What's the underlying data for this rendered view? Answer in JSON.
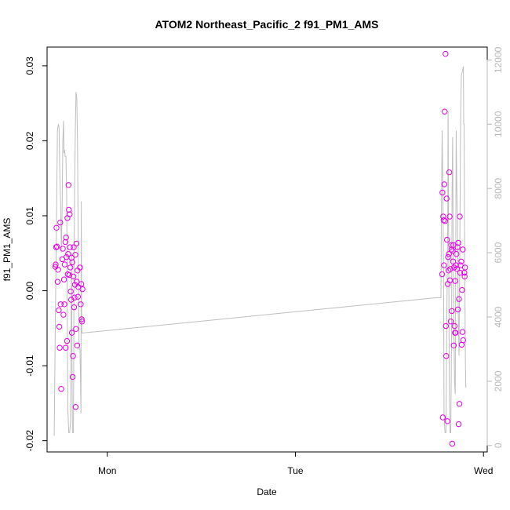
{
  "chart_data": {
    "type": "scatter",
    "title": "ATOM2 Northeast_Pacific_2 f91_PM1_AMS",
    "xlabel": "Date",
    "ylabel": "f91_PM1_AMS",
    "x_ticks": [
      "Mon",
      "Tue",
      "Wed"
    ],
    "x_tick_days": [
      1,
      2,
      3
    ],
    "xlim_days": [
      0.68,
      3.02
    ],
    "ylim": [
      -0.0215,
      0.0325
    ],
    "y_ticks": [
      "-0.02",
      "-0.01",
      "0.00",
      "0.01",
      "0.02",
      "0.03"
    ],
    "y_tick_values": [
      -0.02,
      -0.01,
      0.0,
      0.01,
      0.02,
      0.03
    ],
    "y2lim": [
      -200,
      12400
    ],
    "y2_ticks": [
      "0",
      "2000",
      "4000",
      "6000",
      "8000",
      "10000",
      "12000"
    ],
    "y2_tick_values": [
      0,
      2000,
      4000,
      6000,
      8000,
      10000,
      12000
    ],
    "grid": false,
    "series": [
      {
        "role": "points",
        "color": "#e600e6",
        "points": [
          [
            0.724,
            0.0032
          ],
          [
            0.726,
            0.0035
          ],
          [
            0.728,
            0.0058
          ],
          [
            0.73,
            0.0084
          ],
          [
            0.733,
            0.0059
          ],
          [
            0.736,
            0.0012
          ],
          [
            0.739,
            0.0028
          ],
          [
            0.742,
            -0.0026
          ],
          [
            0.745,
            -0.0048
          ],
          [
            0.747,
            -0.0076
          ],
          [
            0.75,
            0.0091
          ],
          [
            0.752,
            -0.0018
          ],
          [
            0.755,
            -0.0131
          ],
          [
            0.761,
            0.0042
          ],
          [
            0.764,
            0.0056
          ],
          [
            0.767,
            -0.0032
          ],
          [
            0.77,
            0.0015
          ],
          [
            0.772,
            -0.0018
          ],
          [
            0.774,
            0.0035
          ],
          [
            0.777,
            0.0065
          ],
          [
            0.779,
            -0.0076
          ],
          [
            0.781,
            0.0071
          ],
          [
            0.783,
            0.0045
          ],
          [
            0.786,
            -0.0067
          ],
          [
            0.788,
            0.0097
          ],
          [
            0.79,
            0.0022
          ],
          [
            0.792,
            0.0049
          ],
          [
            0.794,
            0.0141
          ],
          [
            0.796,
            0.0108
          ],
          [
            0.798,
            0.0021
          ],
          [
            0.8,
            0.0102
          ],
          [
            0.802,
            0.0058
          ],
          [
            0.804,
            0.0031
          ],
          [
            0.806,
            -0.0001
          ],
          [
            0.808,
            -0.0012
          ],
          [
            0.81,
            0.0044
          ],
          [
            0.812,
            -0.0056
          ],
          [
            0.814,
            0.0038
          ],
          [
            0.816,
            -0.0115
          ],
          [
            0.818,
            -0.0087
          ],
          [
            0.82,
            0.0019
          ],
          [
            0.822,
            0.0058
          ],
          [
            0.824,
            -0.0022
          ],
          [
            0.826,
            -0.0009
          ],
          [
            0.828,
            0.0008
          ],
          [
            0.83,
            0.0048
          ],
          [
            0.832,
            -0.0155
          ],
          [
            0.834,
            -0.0051
          ],
          [
            0.836,
            0.0063
          ],
          [
            0.838,
            0.0012
          ],
          [
            0.84,
            -0.0073
          ],
          [
            0.842,
            0.0027
          ],
          [
            0.844,
            -0.0008
          ],
          [
            0.846,
            0.0005
          ],
          [
            0.855,
            0.0031
          ],
          [
            0.859,
            -0.0018
          ],
          [
            0.862,
            0.0009
          ],
          [
            0.864,
            -0.0038
          ],
          [
            0.866,
            -0.0041
          ],
          [
            0.868,
            0.0002
          ],
          [
            2.78,
            0.0022
          ],
          [
            2.782,
            0.0131
          ],
          [
            2.784,
            -0.0169
          ],
          [
            2.786,
            0.0099
          ],
          [
            2.788,
            0.0094
          ],
          [
            2.79,
            0.0034
          ],
          [
            2.792,
            0.0142
          ],
          [
            2.794,
            0.0239
          ],
          [
            2.796,
            0.0093
          ],
          [
            2.798,
            0.0316
          ],
          [
            2.8,
            -0.0047
          ],
          [
            2.802,
            -0.0087
          ],
          [
            2.804,
            0.0123
          ],
          [
            2.806,
            0.0068
          ],
          [
            2.808,
            -0.0174
          ],
          [
            2.81,
            0.0009
          ],
          [
            2.812,
            0.0045
          ],
          [
            2.814,
            0.0027
          ],
          [
            2.816,
            0.0049
          ],
          [
            2.818,
            0.0158
          ],
          [
            2.82,
            0.0099
          ],
          [
            2.822,
            0.0014
          ],
          [
            2.824,
            0.0029
          ],
          [
            2.826,
            -0.0041
          ],
          [
            2.828,
            0.0061
          ],
          [
            2.83,
            0.0055
          ],
          [
            2.832,
            -0.0027
          ],
          [
            2.834,
            -0.0204
          ],
          [
            2.836,
            0.0053
          ],
          [
            2.838,
            0.0039
          ],
          [
            2.84,
            0.0061
          ],
          [
            2.842,
            -0.0073
          ],
          [
            2.844,
            0.0031
          ],
          [
            2.846,
            -0.0047
          ],
          [
            2.848,
            -0.0056
          ],
          [
            2.85,
            0.0013
          ],
          [
            2.852,
            -0.0056
          ],
          [
            2.854,
            0.0034
          ],
          [
            2.856,
            0.0049
          ],
          [
            2.858,
            0.0029
          ],
          [
            2.862,
            0.0058
          ],
          [
            2.864,
            -0.0025
          ],
          [
            2.866,
            0.0064
          ],
          [
            2.868,
            -0.0178
          ],
          [
            2.87,
            -0.0011
          ],
          [
            2.872,
            -0.0151
          ],
          [
            2.874,
            0.0099
          ],
          [
            2.876,
            0.0024
          ],
          [
            2.878,
            0.0034
          ],
          [
            2.882,
            0.0039
          ],
          [
            2.884,
            -0.0072
          ],
          [
            2.886,
            0.0001
          ],
          [
            2.888,
            -0.0055
          ],
          [
            2.89,
            0.0055
          ],
          [
            2.892,
            -0.0066
          ],
          [
            2.898,
            0.0024
          ],
          [
            2.9,
            0.0019
          ],
          [
            2.902,
            0.0031
          ]
        ]
      },
      {
        "role": "line",
        "color": "#bebebe",
        "axis": "right",
        "points": [
          [
            0.718,
            300
          ],
          [
            0.724,
            3800
          ],
          [
            0.73,
            7000
          ],
          [
            0.735,
            9800
          ],
          [
            0.74,
            10000
          ],
          [
            0.744,
            9900
          ],
          [
            0.748,
            8400
          ],
          [
            0.752,
            7500
          ],
          [
            0.756,
            6000
          ],
          [
            0.76,
            7400
          ],
          [
            0.764,
            9500
          ],
          [
            0.767,
            10100
          ],
          [
            0.77,
            9100
          ],
          [
            0.773,
            9200
          ],
          [
            0.776,
            9000
          ],
          [
            0.78,
            9000
          ],
          [
            0.784,
            8000
          ],
          [
            0.786,
            6000
          ],
          [
            0.79,
            1200
          ],
          [
            0.795,
            400
          ],
          [
            0.8,
            400
          ],
          [
            0.805,
            800
          ],
          [
            0.81,
            6000
          ],
          [
            0.813,
            2000
          ],
          [
            0.815,
            400
          ],
          [
            0.82,
            400
          ],
          [
            0.823,
            5000
          ],
          [
            0.826,
            7800
          ],
          [
            0.83,
            9800
          ],
          [
            0.834,
            11000
          ],
          [
            0.838,
            10800
          ],
          [
            0.842,
            9400
          ],
          [
            0.846,
            6000
          ],
          [
            0.85,
            3000
          ],
          [
            0.855,
            3000
          ],
          [
            0.86,
            1000
          ],
          [
            0.862,
            7600
          ],
          [
            0.864,
            3600
          ],
          [
            0.866,
            3500
          ],
          [
            2.75,
            4600
          ],
          [
            2.774,
            4600
          ],
          [
            2.776,
            7000
          ],
          [
            2.78,
            9800
          ],
          [
            2.784,
            8000
          ],
          [
            2.788,
            5000
          ],
          [
            2.79,
            1000
          ],
          [
            2.795,
            400
          ],
          [
            2.8,
            400
          ],
          [
            2.805,
            4000
          ],
          [
            2.81,
            7000
          ],
          [
            2.812,
            10400
          ],
          [
            2.815,
            6000
          ],
          [
            2.818,
            2000
          ],
          [
            2.822,
            400
          ],
          [
            2.826,
            400
          ],
          [
            2.83,
            3000
          ],
          [
            2.833,
            8000
          ],
          [
            2.836,
            9600
          ],
          [
            2.84,
            5000
          ],
          [
            2.846,
            2000
          ],
          [
            2.85,
            1600
          ],
          [
            2.852,
            5000
          ],
          [
            2.855,
            9800
          ],
          [
            2.858,
            8000
          ],
          [
            2.862,
            7000
          ],
          [
            2.866,
            4000
          ],
          [
            2.87,
            2800
          ],
          [
            2.874,
            6000
          ],
          [
            2.878,
            10000
          ],
          [
            2.882,
            11500
          ],
          [
            2.886,
            11600
          ],
          [
            2.89,
            11700
          ],
          [
            2.893,
            11800
          ],
          [
            2.895,
            10000
          ],
          [
            2.897,
            10000
          ],
          [
            2.9,
            6000
          ],
          [
            2.904,
            2500
          ],
          [
            2.906,
            1800
          ]
        ]
      }
    ]
  }
}
